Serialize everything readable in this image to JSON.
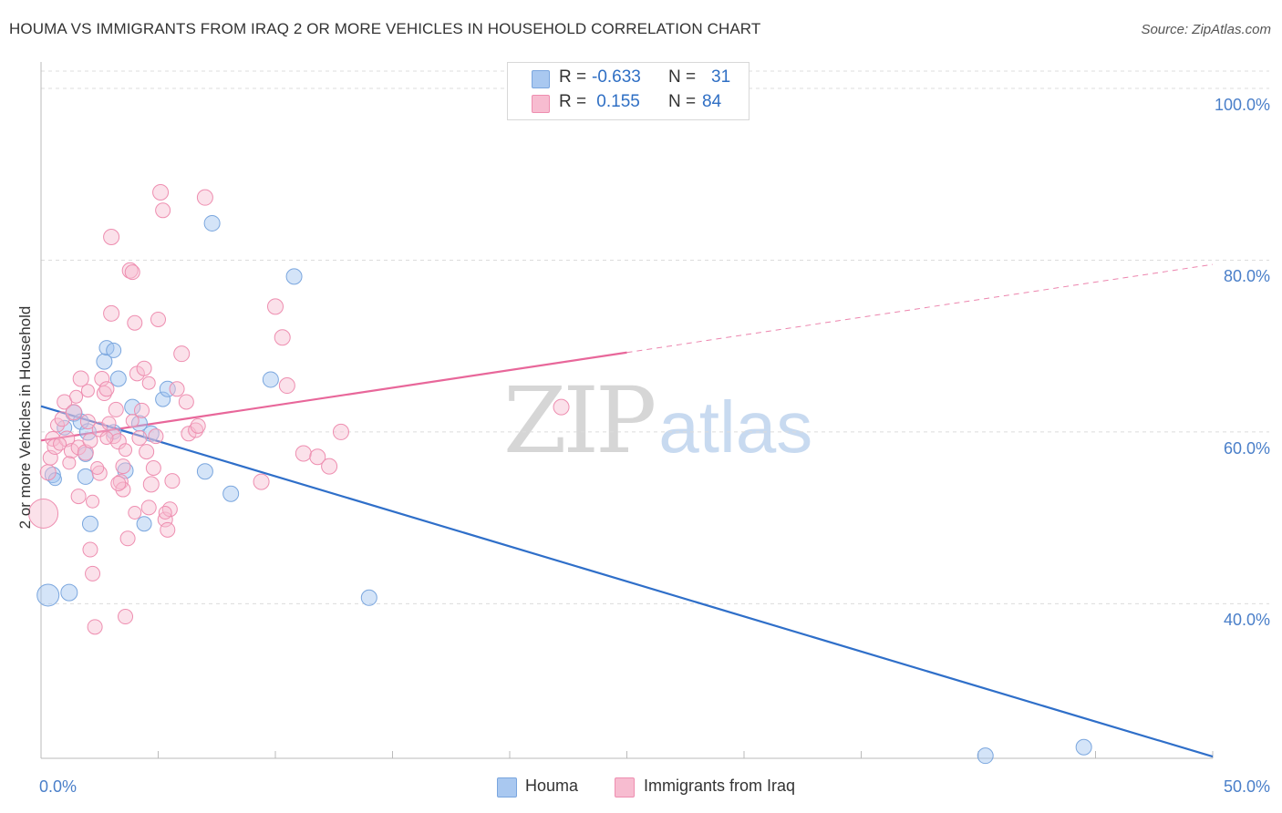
{
  "title": "HOUMA VS IMMIGRANTS FROM IRAQ 2 OR MORE VEHICLES IN HOUSEHOLD CORRELATION CHART",
  "source": "Source: ZipAtlas.com",
  "watermark": {
    "zip": "ZIP",
    "atlas": "atlas"
  },
  "stats": [
    {
      "r_label": "R =",
      "r_value": "-0.633",
      "n_label": "N =",
      "n_value": "31",
      "color": "#a9c8f0",
      "border": "#7aa6de"
    },
    {
      "r_label": "R =",
      "r_value": " 0.155",
      "n_label": "N =",
      "n_value": "84",
      "color": "#f7bcd0",
      "border": "#ee8eb0"
    }
  ],
  "legend": [
    {
      "label": "Houma",
      "color": "#a9c8f0",
      "border": "#7aa6de"
    },
    {
      "label": "Immigrants from Iraq",
      "color": "#f7bcd0",
      "border": "#ee8eb0"
    }
  ],
  "chart_data": {
    "type": "scatter",
    "title": "HOUMA VS IMMIGRANTS FROM IRAQ 2 OR MORE VEHICLES IN HOUSEHOLD CORRELATION CHART",
    "ylabel": "2 or more Vehicles in Household",
    "xlabel": "",
    "xlim": [
      0,
      50
    ],
    "ylim": [
      20,
      105
    ],
    "x_tick_labels": [
      {
        "value": 0,
        "label": "0.0%"
      },
      {
        "value": 50,
        "label": "50.0%"
      }
    ],
    "y_tick_labels": [
      {
        "value": 100,
        "label": "100.0%"
      },
      {
        "value": 80,
        "label": "80.0%"
      },
      {
        "value": 60,
        "label": "60.0%"
      },
      {
        "value": 40,
        "label": "40.0%"
      }
    ],
    "series": [
      {
        "name": "Houma",
        "color": "#7aa6de",
        "fill": "rgba(160,196,240,0.45)",
        "trend": {
          "x0": 0,
          "y0": 63.0,
          "x1": 50,
          "y1": 22.2,
          "solid_until": 50
        },
        "points": [
          [
            0.3,
            41.0,
            22
          ],
          [
            1.2,
            41.3,
            16
          ],
          [
            0.5,
            55.0,
            15
          ],
          [
            1.0,
            60.5,
            14
          ],
          [
            1.4,
            62.2,
            16
          ],
          [
            1.7,
            61.2,
            15
          ],
          [
            2.0,
            60.0,
            16
          ],
          [
            1.9,
            54.8,
            15
          ],
          [
            1.9,
            57.4,
            14
          ],
          [
            2.1,
            49.3,
            15
          ],
          [
            2.7,
            68.2,
            15
          ],
          [
            2.8,
            69.8,
            14
          ],
          [
            3.1,
            69.5,
            14
          ],
          [
            3.1,
            60.0,
            14
          ],
          [
            3.3,
            66.2,
            15
          ],
          [
            3.6,
            55.5,
            15
          ],
          [
            3.9,
            62.9,
            15
          ],
          [
            4.2,
            61.0,
            15
          ],
          [
            4.4,
            49.3,
            14
          ],
          [
            4.7,
            59.8,
            15
          ],
          [
            5.2,
            63.8,
            14
          ],
          [
            5.4,
            65.0,
            15
          ],
          [
            7.0,
            55.4,
            15
          ],
          [
            7.3,
            84.3,
            15
          ],
          [
            8.1,
            52.8,
            15
          ],
          [
            9.8,
            66.1,
            15
          ],
          [
            10.8,
            78.1,
            15
          ],
          [
            14.0,
            40.7,
            15
          ],
          [
            40.3,
            22.3,
            15
          ],
          [
            44.5,
            23.3,
            15
          ],
          [
            0.6,
            54.5,
            12
          ]
        ]
      },
      {
        "name": "Immigrants from Iraq",
        "color": "#ee8eb0",
        "fill": "rgba(247,188,208,0.45)",
        "trend": {
          "x0": 0,
          "y0": 59.0,
          "x1": 50,
          "y1": 79.5,
          "solid_until": 25
        },
        "points": [
          [
            0.1,
            50.5,
            30
          ],
          [
            0.3,
            55.3,
            15
          ],
          [
            0.4,
            57.0,
            14
          ],
          [
            0.5,
            59.2,
            14
          ],
          [
            0.6,
            58.3,
            15
          ],
          [
            0.7,
            60.8,
            13
          ],
          [
            0.9,
            61.5,
            14
          ],
          [
            1.0,
            63.5,
            14
          ],
          [
            1.1,
            59.2,
            15
          ],
          [
            1.3,
            57.8,
            14
          ],
          [
            1.4,
            62.3,
            15
          ],
          [
            1.6,
            58.2,
            14
          ],
          [
            1.7,
            66.2,
            15
          ],
          [
            1.9,
            57.6,
            15
          ],
          [
            2.0,
            61.2,
            14
          ],
          [
            2.1,
            59.0,
            14
          ],
          [
            2.1,
            46.3,
            14
          ],
          [
            2.2,
            43.5,
            14
          ],
          [
            2.3,
            37.3,
            14
          ],
          [
            2.5,
            55.2,
            14
          ],
          [
            1.6,
            52.5,
            14
          ],
          [
            2.5,
            60.3,
            14
          ],
          [
            2.6,
            66.2,
            14
          ],
          [
            2.7,
            64.5,
            14
          ],
          [
            2.8,
            65.0,
            14
          ],
          [
            2.9,
            61.0,
            13
          ],
          [
            3.0,
            73.8,
            15
          ],
          [
            3.0,
            82.7,
            15
          ],
          [
            3.1,
            59.5,
            14
          ],
          [
            3.2,
            62.6,
            14
          ],
          [
            3.3,
            58.9,
            15
          ],
          [
            3.4,
            54.2,
            14
          ],
          [
            3.5,
            56.0,
            14
          ],
          [
            3.5,
            53.3,
            14
          ],
          [
            3.6,
            38.5,
            14
          ],
          [
            3.7,
            47.6,
            14
          ],
          [
            3.3,
            54.0,
            14
          ],
          [
            3.8,
            78.8,
            15
          ],
          [
            3.9,
            78.6,
            14
          ],
          [
            4.0,
            72.7,
            14
          ],
          [
            4.1,
            66.8,
            14
          ],
          [
            4.2,
            59.3,
            14
          ],
          [
            4.3,
            62.5,
            14
          ],
          [
            4.4,
            67.4,
            14
          ],
          [
            4.5,
            57.7,
            14
          ],
          [
            4.6,
            51.2,
            14
          ],
          [
            4.7,
            53.9,
            15
          ],
          [
            4.8,
            55.8,
            14
          ],
          [
            4.9,
            59.5,
            14
          ],
          [
            5.0,
            73.1,
            14
          ],
          [
            5.1,
            87.9,
            15
          ],
          [
            5.2,
            85.8,
            14
          ],
          [
            5.3,
            49.8,
            14
          ],
          [
            5.4,
            48.6,
            14
          ],
          [
            5.5,
            51.0,
            14
          ],
          [
            5.6,
            54.3,
            14
          ],
          [
            5.8,
            65.0,
            14
          ],
          [
            6.0,
            69.1,
            15
          ],
          [
            6.2,
            63.5,
            14
          ],
          [
            6.3,
            59.8,
            14
          ],
          [
            6.6,
            60.2,
            14
          ],
          [
            6.7,
            60.7,
            14
          ],
          [
            7.0,
            87.3,
            15
          ],
          [
            9.4,
            54.2,
            15
          ],
          [
            10.0,
            74.6,
            15
          ],
          [
            10.3,
            71.0,
            15
          ],
          [
            10.5,
            65.4,
            15
          ],
          [
            11.2,
            57.5,
            15
          ],
          [
            11.8,
            57.1,
            15
          ],
          [
            12.3,
            56.0,
            15
          ],
          [
            12.8,
            60.0,
            15
          ],
          [
            22.2,
            62.9,
            15
          ],
          [
            1.2,
            56.4,
            12
          ],
          [
            2.4,
            55.8,
            12
          ],
          [
            3.6,
            57.9,
            12
          ],
          [
            4.0,
            50.6,
            12
          ],
          [
            1.5,
            64.1,
            12
          ],
          [
            2.2,
            51.9,
            12
          ],
          [
            2.8,
            59.3,
            12
          ],
          [
            3.9,
            61.3,
            12
          ],
          [
            0.8,
            58.6,
            12
          ],
          [
            2.0,
            64.8,
            12
          ],
          [
            4.6,
            65.7,
            12
          ],
          [
            5.3,
            50.6,
            12
          ]
        ]
      }
    ]
  }
}
